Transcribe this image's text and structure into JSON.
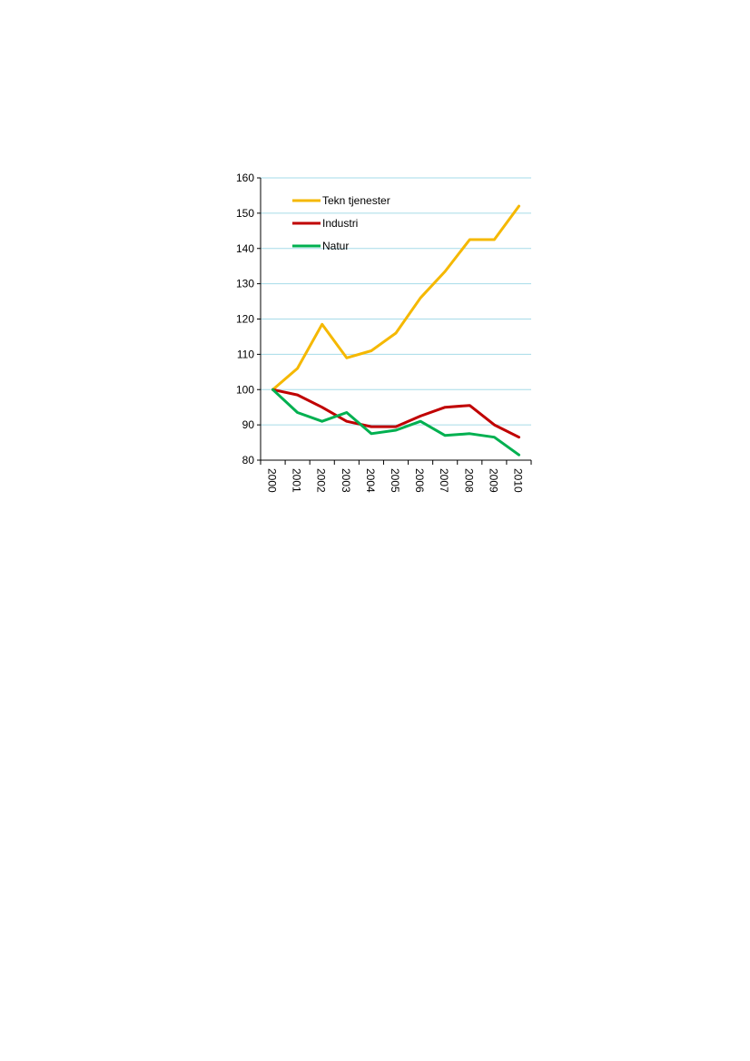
{
  "chart_data": {
    "type": "line",
    "title": "",
    "xlabel": "",
    "ylabel": "",
    "categories": [
      "2000",
      "2001",
      "2002",
      "2003",
      "2004",
      "2005",
      "2006",
      "2007",
      "2008",
      "2009",
      "2010"
    ],
    "ylim": [
      80,
      160
    ],
    "yticks": [
      80,
      90,
      100,
      110,
      120,
      130,
      140,
      150,
      160
    ],
    "grid": true,
    "legend_position": "top-left",
    "series": [
      {
        "name": "Tekn tjenester",
        "color": "#f5b800",
        "values": [
          100,
          106,
          118.5,
          109,
          111,
          116,
          126,
          133.5,
          142.5,
          142.5,
          152
        ]
      },
      {
        "name": "Industri",
        "color": "#c00000",
        "values": [
          100,
          98.5,
          95,
          91,
          89.5,
          89.5,
          92.5,
          95,
          95.5,
          90,
          86.5
        ]
      },
      {
        "name": "Natur",
        "color": "#00b050",
        "values": [
          100,
          93.5,
          91,
          93.5,
          87.5,
          88.5,
          91,
          87,
          87.5,
          86.5,
          81.5
        ]
      }
    ]
  }
}
